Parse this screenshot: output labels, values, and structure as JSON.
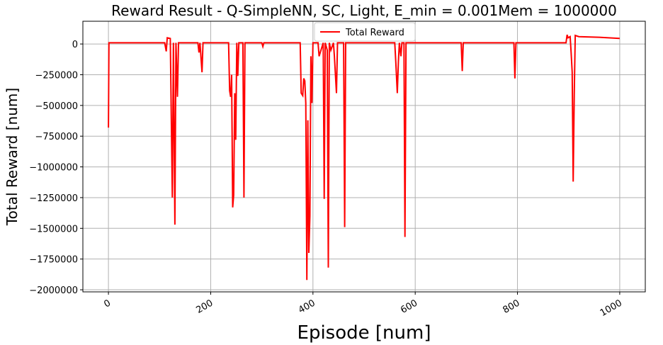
{
  "chart_data": {
    "type": "line",
    "title": "Reward Result - Q-SimpleNN, SC, Light, E_min = 0.001Mem =  1000000",
    "x_label": "Episode [num]",
    "y_label": "Total Reward [num]",
    "grid": true,
    "legend": "upper center",
    "xlim": [
      -50,
      1050
    ],
    "ylim": [
      -2017000,
      185000
    ],
    "xticks": [
      0,
      200,
      400,
      600,
      800,
      1000
    ],
    "yticks": [
      0,
      {
        "value": -250000,
        "label": "−250000"
      },
      {
        "value": -500000,
        "label": "−500000"
      },
      {
        "value": -750000,
        "label": "−750000"
      },
      {
        "value": -1000000,
        "label": "−1000000"
      },
      {
        "value": -1250000,
        "label": "−1250000"
      },
      {
        "value": -1500000,
        "label": "−1500000"
      },
      {
        "value": -1750000,
        "label": "−1750000"
      },
      {
        "value": -2000000,
        "label": "−2000000"
      }
    ],
    "x": [
      0,
      1,
      110,
      113,
      115,
      121,
      123,
      125,
      127,
      130,
      132,
      135,
      137,
      175,
      177,
      179,
      183,
      185,
      235,
      237,
      239,
      241,
      243,
      245,
      247,
      249,
      251,
      253,
      255,
      263,
      265,
      267,
      300,
      302,
      304,
      375,
      377,
      380,
      382,
      384,
      386,
      388,
      390,
      392,
      394,
      396,
      398,
      400,
      410,
      412,
      420,
      422,
      424,
      428,
      430,
      432,
      435,
      440,
      442,
      446,
      448,
      460,
      462,
      464,
      560,
      562,
      565,
      567,
      569,
      572,
      574,
      578,
      580,
      582,
      690,
      692,
      694,
      793,
      795,
      797,
      895,
      897,
      899,
      903,
      905,
      907,
      909,
      911,
      913,
      920,
      960,
      1000
    ],
    "series": [
      {
        "name": "Total Reward",
        "color": "#ff0000",
        "values": [
          -680000,
          10000,
          10000,
          -60000,
          50000,
          45000,
          -630000,
          -1250000,
          10000,
          -1470000,
          10000,
          -430000,
          10000,
          10000,
          -70000,
          10000,
          -230000,
          10000,
          10000,
          -380000,
          -430000,
          -250000,
          -1330000,
          -1230000,
          -400000,
          -780000,
          10000,
          -260000,
          10000,
          10000,
          -1250000,
          10000,
          10000,
          -20000,
          10000,
          10000,
          -400000,
          -420000,
          -280000,
          -300000,
          -480000,
          -1920000,
          -620000,
          -1700000,
          -1400000,
          -100000,
          -480000,
          10000,
          10000,
          -100000,
          10000,
          -1260000,
          10000,
          -50000,
          -1820000,
          10000,
          -50000,
          10000,
          -100000,
          -400000,
          10000,
          10000,
          -1490000,
          10000,
          10000,
          -150000,
          -400000,
          -150000,
          10000,
          -100000,
          10000,
          10000,
          -1570000,
          10000,
          10000,
          -220000,
          10000,
          10000,
          -280000,
          10000,
          10000,
          75000,
          50000,
          60000,
          -70000,
          -230000,
          -1120000,
          -410000,
          70000,
          60000,
          55000,
          45000
        ]
      }
    ]
  }
}
